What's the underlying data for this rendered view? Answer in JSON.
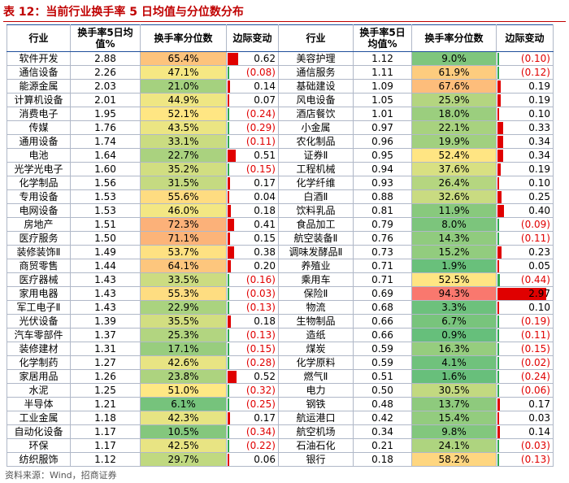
{
  "table": {
    "title": "表 12：当前行业换手率 5 日均值与分位数分布",
    "headers": [
      "行业",
      "换手率5日均值%",
      "换手率分位数",
      "边际变动",
      "行业",
      "换手率5日均值%",
      "换手率分位数",
      "边际变动"
    ],
    "rows": [
      [
        "软件开发",
        "2.88",
        "65.4%",
        "0.62",
        "美容护理",
        "1.12",
        "9.0%",
        "(0.10)"
      ],
      [
        "通信设备",
        "2.26",
        "47.1%",
        "(0.08)",
        "通信服务",
        "1.11",
        "61.9%",
        "(0.12)"
      ],
      [
        "能源金属",
        "2.03",
        "21.0%",
        "0.14",
        "基础建设",
        "1.09",
        "67.6%",
        "0.19"
      ],
      [
        "计算机设备",
        "2.01",
        "44.9%",
        "0.07",
        "风电设备",
        "1.05",
        "25.9%",
        "0.19"
      ],
      [
        "消费电子",
        "1.95",
        "52.1%",
        "(0.24)",
        "酒店餐饮",
        "1.01",
        "18.0%",
        "0.10"
      ],
      [
        "传媒",
        "1.76",
        "43.5%",
        "(0.29)",
        "小金属",
        "0.97",
        "22.1%",
        "0.33"
      ],
      [
        "通用设备",
        "1.74",
        "33.1%",
        "(0.11)",
        "农化制品",
        "0.96",
        "19.9%",
        "0.34"
      ],
      [
        "电池",
        "1.64",
        "22.7%",
        "0.51",
        "证券Ⅱ",
        "0.95",
        "52.4%",
        "0.34"
      ],
      [
        "光学光电子",
        "1.60",
        "35.2%",
        "(0.15)",
        "工程机械",
        "0.94",
        "37.6%",
        "0.19"
      ],
      [
        "化学制品",
        "1.56",
        "31.5%",
        "0.17",
        "化学纤维",
        "0.93",
        "26.4%",
        "0.10"
      ],
      [
        "专用设备",
        "1.53",
        "55.6%",
        "0.04",
        "白酒Ⅱ",
        "0.88",
        "32.6%",
        "0.25"
      ],
      [
        "电网设备",
        "1.53",
        "46.0%",
        "0.18",
        "饮料乳品",
        "0.81",
        "11.9%",
        "0.40"
      ],
      [
        "房地产",
        "1.51",
        "72.3%",
        "0.41",
        "食品加工",
        "0.79",
        "8.0%",
        "(0.09)"
      ],
      [
        "医疗服务",
        "1.50",
        "71.1%",
        "0.15",
        "航空装备Ⅱ",
        "0.76",
        "14.3%",
        "(0.11)"
      ],
      [
        "装修装饰Ⅱ",
        "1.49",
        "53.7%",
        "0.38",
        "调味发酵品Ⅱ",
        "0.73",
        "15.2%",
        "0.23"
      ],
      [
        "商贸零售",
        "1.44",
        "64.1%",
        "0.20",
        "养殖业",
        "0.71",
        "1.9%",
        "0.05"
      ],
      [
        "医疗器械",
        "1.43",
        "33.5%",
        "(0.16)",
        "乘用车",
        "0.71",
        "52.5%",
        "(0.44)"
      ],
      [
        "家用电器",
        "1.43",
        "55.3%",
        "(0.03)",
        "保险Ⅱ",
        "0.69",
        "94.3%",
        "2.97"
      ],
      [
        "军工电子Ⅱ",
        "1.43",
        "22.9%",
        "(0.13)",
        "物流",
        "0.68",
        "3.3%",
        "0.10"
      ],
      [
        "光伏设备",
        "1.39",
        "35.5%",
        "0.18",
        "生物制品",
        "0.66",
        "6.7%",
        "(0.19)"
      ],
      [
        "汽车零部件",
        "1.37",
        "25.3%",
        "(0.13)",
        "造纸",
        "0.66",
        "0.9%",
        "(0.11)"
      ],
      [
        "装修建材",
        "1.31",
        "17.1%",
        "(0.15)",
        "煤炭",
        "0.59",
        "16.3%",
        "(0.15)"
      ],
      [
        "化学制药",
        "1.27",
        "42.6%",
        "(0.28)",
        "化学原料",
        "0.59",
        "4.1%",
        "(0.02)"
      ],
      [
        "家居用品",
        "1.26",
        "23.8%",
        "0.52",
        "燃气Ⅱ",
        "0.51",
        "1.6%",
        "(0.24)"
      ],
      [
        "水泥",
        "1.25",
        "51.0%",
        "(0.32)",
        "电力",
        "0.50",
        "30.5%",
        "(0.06)"
      ],
      [
        "半导体",
        "1.21",
        "6.1%",
        "(0.25)",
        "钢铁",
        "0.48",
        "13.7%",
        "0.17"
      ],
      [
        "工业金属",
        "1.18",
        "42.3%",
        "0.17",
        "航运港口",
        "0.42",
        "15.4%",
        "0.03"
      ],
      [
        "自动化设备",
        "1.17",
        "10.5%",
        "(0.34)",
        "航空机场",
        "0.34",
        "9.8%",
        "0.14"
      ],
      [
        "环保",
        "1.17",
        "42.5%",
        "(0.22)",
        "石油石化",
        "0.21",
        "24.1%",
        "(0.03)"
      ],
      [
        "纺织服饰",
        "1.12",
        "29.7%",
        "0.06",
        "银行",
        "0.18",
        "58.2%",
        "(0.13)"
      ]
    ],
    "source": "资料来源：Wind，招商证券"
  }
}
